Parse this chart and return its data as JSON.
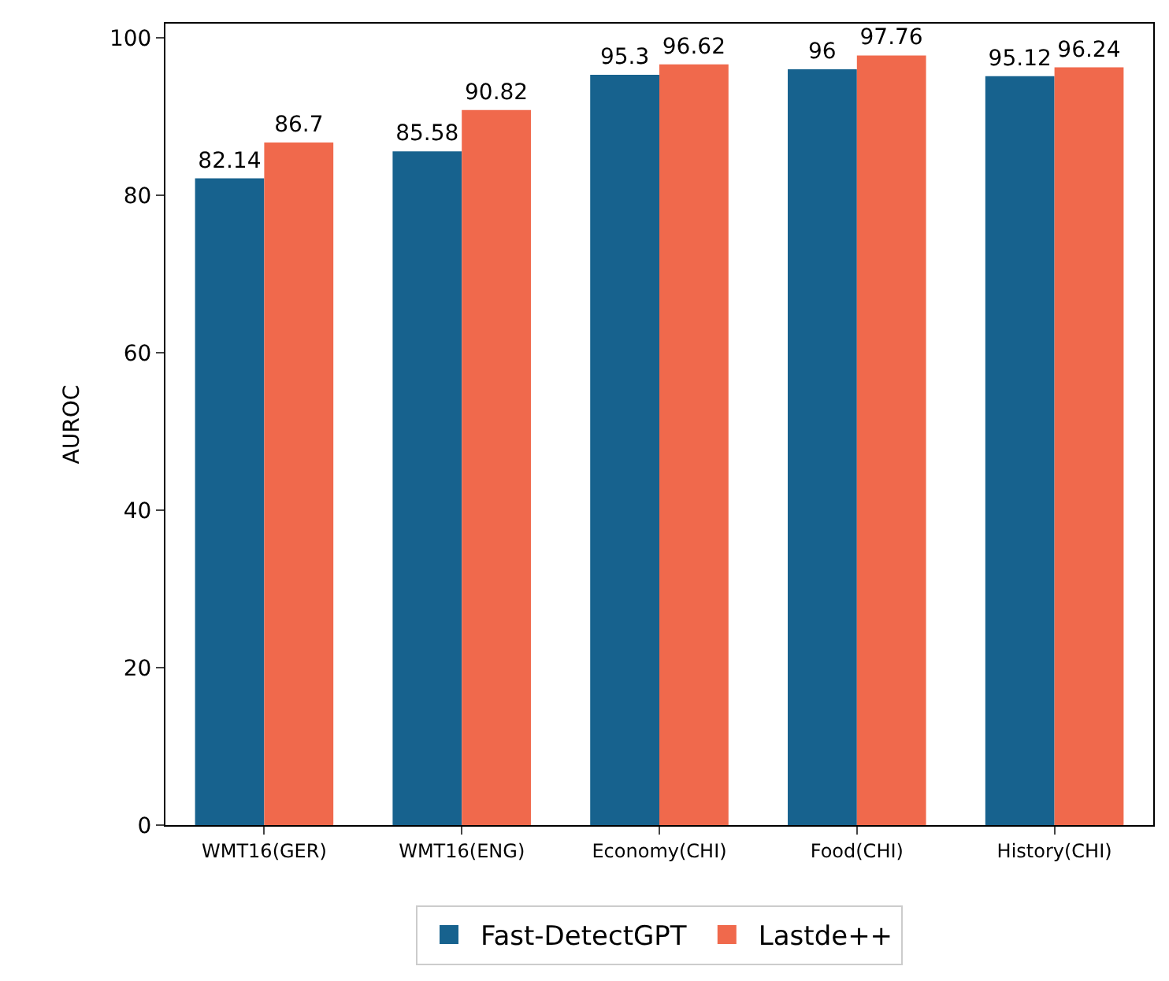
{
  "chart_data": {
    "type": "bar",
    "ylabel": "AUROC",
    "categories": [
      "WMT16(GER)",
      "WMT16(ENG)",
      "Economy(CHI)",
      "Food(CHI)",
      "History(CHI)"
    ],
    "series": [
      {
        "name": "Fast-DetectGPT",
        "color": "#17628e",
        "values": [
          82.14,
          85.58,
          95.3,
          96,
          95.12
        ]
      },
      {
        "name": "Lastde++",
        "color": "#f0694c",
        "values": [
          86.7,
          90.82,
          96.62,
          97.76,
          96.24
        ]
      }
    ],
    "ylim": [
      0,
      101.8
    ],
    "yticks": [
      0,
      20,
      40,
      60,
      80,
      100
    ],
    "data_labels": true,
    "legend": "bottom"
  }
}
